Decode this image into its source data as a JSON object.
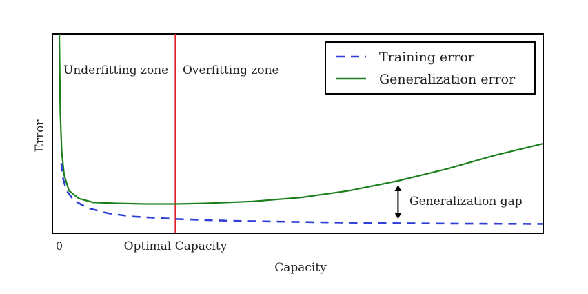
{
  "chart_data": {
    "type": "line",
    "ylabel": "Error",
    "xlabel": "Capacity",
    "x_ticks": [
      {
        "label": "0",
        "value": 0
      },
      {
        "label": "Optimal Capacity",
        "value": 0.24
      }
    ],
    "x_range": [
      0,
      1
    ],
    "y_range": [
      0,
      1
    ],
    "grid": false,
    "legend_position": "top-right",
    "series": [
      {
        "name": "Training error",
        "style": "dashed",
        "color": "#2f3fd6",
        "x": [
          0.004,
          0.008,
          0.015,
          0.03,
          0.06,
          0.1,
          0.15,
          0.24,
          0.35,
          0.5,
          0.65,
          0.8,
          1.0
        ],
        "y": [
          0.34,
          0.26,
          0.2,
          0.15,
          0.11,
          0.085,
          0.068,
          0.055,
          0.046,
          0.04,
          0.035,
          0.032,
          0.03
        ]
      },
      {
        "name": "Generalization error",
        "style": "solid",
        "color": "#1a7f1a",
        "x": [
          0.0,
          0.002,
          0.005,
          0.01,
          0.02,
          0.04,
          0.07,
          0.12,
          0.18,
          0.24,
          0.3,
          0.4,
          0.5,
          0.6,
          0.7,
          0.8,
          0.9,
          1.0
        ],
        "y": [
          1.0,
          0.6,
          0.4,
          0.28,
          0.2,
          0.16,
          0.14,
          0.135,
          0.132,
          0.132,
          0.135,
          0.145,
          0.165,
          0.2,
          0.25,
          0.31,
          0.38,
          0.44
        ]
      }
    ],
    "optimal_line": {
      "value": 0.24,
      "color": "#e0202a"
    },
    "annotations": [
      {
        "text": "Underfitting zone"
      },
      {
        "text": "Overfitting zone"
      },
      {
        "text": "Generalization gap",
        "x": 0.7
      }
    ]
  }
}
